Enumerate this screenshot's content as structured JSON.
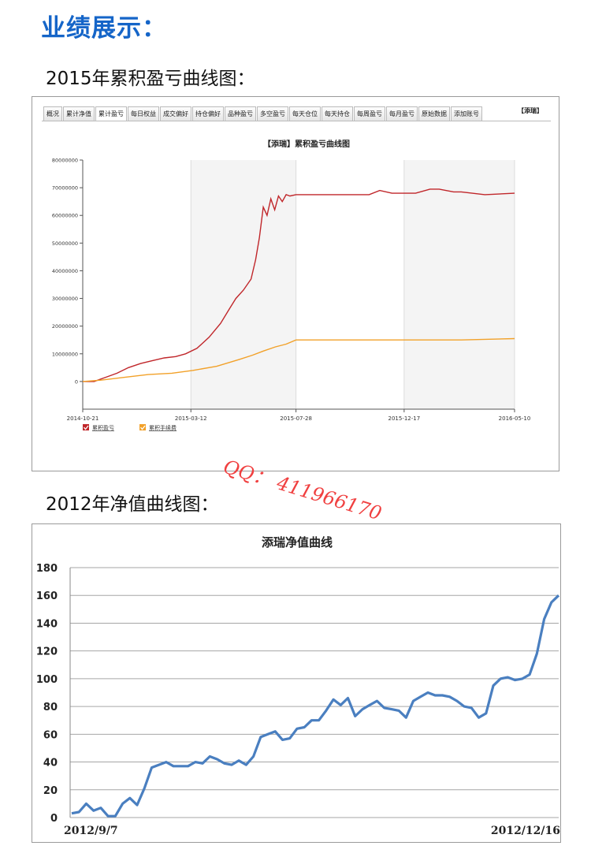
{
  "header": {
    "title": "业绩展示："
  },
  "section1": {
    "subtitle": "2015年累积盈亏曲线图："
  },
  "section2": {
    "subtitle": "2012年净值曲线图："
  },
  "watermark": {
    "text": "QQ：  411966170"
  },
  "colors": {
    "heading": "#1565c8",
    "profit_line": "#c0262a",
    "fee_line": "#f2a129",
    "nav_line": "#4a7fc0",
    "watermark": "#f04040"
  },
  "panel1": {
    "tabs": [
      "概况",
      "累计净值",
      "累计盈亏",
      "每日权益",
      "成交偏好",
      "持仓偏好",
      "品种盈亏",
      "多空盈亏",
      "每天仓位",
      "每天持仓",
      "每周盈亏",
      "每月盈亏",
      "原始数据",
      "添加账号"
    ],
    "active_tab": "累计盈亏",
    "corner_label": "【添瑞】"
  },
  "chart_data": [
    {
      "type": "line",
      "title": "【添瑞】累积盈亏曲线图",
      "xlabel": "",
      "ylabel": "",
      "x_ticks": [
        "2014-10-21",
        "2015-03-12",
        "2015-07-28",
        "2015-12-17",
        "2016-05-10"
      ],
      "y_ticks": [
        "80000000",
        "70000000",
        "60000000",
        "50000000",
        "40000000",
        "30000000",
        "20000000",
        "10000000",
        "0"
      ],
      "ylim": [
        -10000000,
        80000000
      ],
      "grid": "vertical bands",
      "legend_position": "bottom-left",
      "series": [
        {
          "name": "累积盈亏",
          "color": "#c0262a",
          "x": [
            "2014-10-21",
            "2014-11-05",
            "2014-11-20",
            "2014-12-05",
            "2014-12-20",
            "2015-01-05",
            "2015-01-20",
            "2015-02-05",
            "2015-02-20",
            "2015-03-05",
            "2015-03-20",
            "2015-04-05",
            "2015-04-20",
            "2015-05-01",
            "2015-05-10",
            "2015-05-20",
            "2015-05-30",
            "2015-06-05",
            "2015-06-10",
            "2015-06-15",
            "2015-06-20",
            "2015-06-25",
            "2015-06-30",
            "2015-07-05",
            "2015-07-10",
            "2015-07-15",
            "2015-07-20",
            "2015-07-28",
            "2015-09-01",
            "2015-10-01",
            "2015-11-01",
            "2015-11-15",
            "2015-12-01",
            "2016-01-01",
            "2016-01-20",
            "2016-02-01",
            "2016-02-20",
            "2016-03-01",
            "2016-04-01",
            "2016-05-10"
          ],
          "values": [
            0,
            0,
            1500000,
            3000000,
            5000000,
            6500000,
            7500000,
            8500000,
            9000000,
            10000000,
            12000000,
            16000000,
            21000000,
            26000000,
            30000000,
            33000000,
            37000000,
            44000000,
            52000000,
            63000000,
            60000000,
            66000000,
            62000000,
            67000000,
            65000000,
            67500000,
            67000000,
            67500000,
            67500000,
            67500000,
            67500000,
            69000000,
            68000000,
            68000000,
            69500000,
            69500000,
            68500000,
            68500000,
            67500000,
            68000000
          ]
        },
        {
          "name": "累积手续费",
          "color": "#f2a129",
          "x": [
            "2014-10-21",
            "2014-11-15",
            "2014-12-15",
            "2015-01-15",
            "2015-02-15",
            "2015-03-15",
            "2015-04-15",
            "2015-05-15",
            "2015-06-01",
            "2015-06-15",
            "2015-07-01",
            "2015-07-15",
            "2015-07-28",
            "2015-09-01",
            "2015-12-01",
            "2016-03-01",
            "2016-05-10"
          ],
          "values": [
            0,
            500000,
            1500000,
            2500000,
            3000000,
            4000000,
            5500000,
            8000000,
            9500000,
            11000000,
            12500000,
            13500000,
            15000000,
            15000000,
            15000000,
            15000000,
            15500000
          ]
        }
      ]
    },
    {
      "type": "line",
      "title": "添瑞净值曲线",
      "xlabel": "",
      "ylabel": "",
      "x_start_label": "2012/9/7",
      "x_end_label": "2012/12/16",
      "y_ticks": [
        "180",
        "160",
        "140",
        "120",
        "100",
        "80",
        "60",
        "40",
        "20",
        "0"
      ],
      "ylim": [
        0,
        180
      ],
      "grid": "horizontal",
      "series": [
        {
          "color": "#4a7fc0",
          "values": [
            3,
            4,
            10,
            5,
            7,
            1,
            1,
            10,
            14,
            9,
            21,
            36,
            38,
            40,
            37,
            37,
            37,
            40,
            39,
            44,
            42,
            39,
            38,
            41,
            38,
            44,
            58,
            60,
            62,
            56,
            57,
            64,
            65,
            70,
            70,
            77,
            85,
            81,
            86,
            73,
            78,
            81,
            84,
            79,
            78,
            77,
            72,
            84,
            87,
            90,
            88,
            88,
            87,
            84,
            80,
            79,
            72,
            75,
            95,
            100,
            101,
            99,
            100,
            103,
            118,
            143,
            155,
            160
          ]
        }
      ]
    }
  ]
}
